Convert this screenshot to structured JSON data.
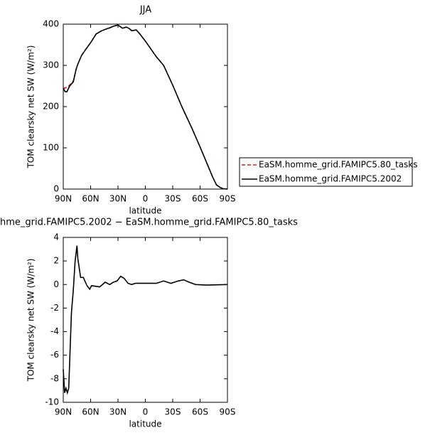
{
  "chart_data": [
    {
      "type": "line",
      "title": "JJA",
      "xlabel": "latitude",
      "ylabel": "TOM clearsky net SW (W/m²)",
      "x": [
        90,
        88,
        86,
        83,
        81,
        79,
        76,
        74,
        70,
        65,
        60,
        54,
        48,
        42,
        39,
        35,
        30,
        25,
        21,
        18,
        15,
        10,
        6,
        0,
        -12,
        -20,
        -30,
        -40,
        -51,
        -60,
        -67,
        -74,
        -78,
        -82,
        -85,
        -90
      ],
      "series": [
        {
          "name": "EaSM.homme_grid.FAMIPC5.80_tasks",
          "color": "#d62020",
          "linestyle": "dashed",
          "values": [
            245,
            245,
            247,
            252,
            257,
            262,
            290,
            303,
            324,
            340,
            355,
            376,
            384,
            389,
            391,
            395,
            398,
            390,
            393,
            390,
            384,
            386,
            376,
            359,
            321,
            300,
            252,
            200,
            148,
            102,
            65,
            28,
            10,
            4,
            1,
            0
          ]
        },
        {
          "name": "EaSM.homme_grid.FAMIPC5.2002",
          "color": "#000000",
          "linestyle": "solid",
          "values": [
            245,
            236,
            236,
            250,
            255,
            260,
            290,
            303,
            324,
            340,
            355,
            376,
            384,
            389,
            391,
            395,
            398,
            390,
            393,
            390,
            384,
            386,
            376,
            359,
            321,
            300,
            252,
            200,
            148,
            102,
            65,
            28,
            10,
            4,
            1,
            0
          ]
        }
      ],
      "xlim": [
        90,
        -90
      ],
      "xticks": [
        {
          "value": 90,
          "label": "90N"
        },
        {
          "value": 60,
          "label": "60N"
        },
        {
          "value": 30,
          "label": "30N"
        },
        0,
        {
          "value": -30,
          "label": "30S"
        },
        {
          "value": -60,
          "label": "60S"
        },
        {
          "value": -90,
          "label": "90S"
        }
      ],
      "ylim": [
        0,
        400
      ],
      "yticks": [
        0,
        100,
        200,
        300,
        400
      ],
      "legend": "right"
    },
    {
      "type": "line",
      "title": "hme_grid.FAMIPC5.2002 − EaSM.homme_grid.FAMIPC5.80_tasks",
      "xlabel": "latitude",
      "ylabel": "TOM clearsky net SW (W/m²)",
      "x": [
        90,
        88.5,
        87,
        85.5,
        84,
        81,
        79,
        77,
        75,
        74,
        71,
        68,
        64,
        61,
        59,
        50,
        44,
        39,
        35,
        31,
        27,
        23,
        19,
        15,
        11,
        0,
        -12,
        -20,
        -28,
        -36,
        -42,
        -48,
        -55,
        -67,
        -90
      ],
      "series": [
        {
          "name": "diff",
          "color": "#000000",
          "linestyle": "solid",
          "values": [
            -7.2,
            -9.2,
            -8.8,
            -9.2,
            -8.8,
            -2.4,
            -0.5,
            2,
            3.3,
            2.2,
            0.6,
            0.6,
            -0.1,
            -0.4,
            -0.1,
            -0.2,
            0.2,
            0,
            0.2,
            0.3,
            0.7,
            0.5,
            0.1,
            0,
            0.1,
            0.1,
            0.1,
            0.3,
            0.1,
            0.3,
            0.4,
            0.2,
            0,
            -0.05,
            0
          ]
        }
      ],
      "xlim": [
        90,
        -90
      ],
      "xticks": [
        {
          "value": 90,
          "label": "90N"
        },
        {
          "value": 60,
          "label": "60N"
        },
        {
          "value": 30,
          "label": "30N"
        },
        0,
        {
          "value": -30,
          "label": "30S"
        },
        {
          "value": -60,
          "label": "60S"
        },
        {
          "value": -90,
          "label": "90S"
        }
      ],
      "ylim": [
        -10,
        4
      ],
      "yticks": [
        -10,
        -8,
        -6,
        -4,
        -2,
        0,
        2,
        4
      ]
    }
  ]
}
